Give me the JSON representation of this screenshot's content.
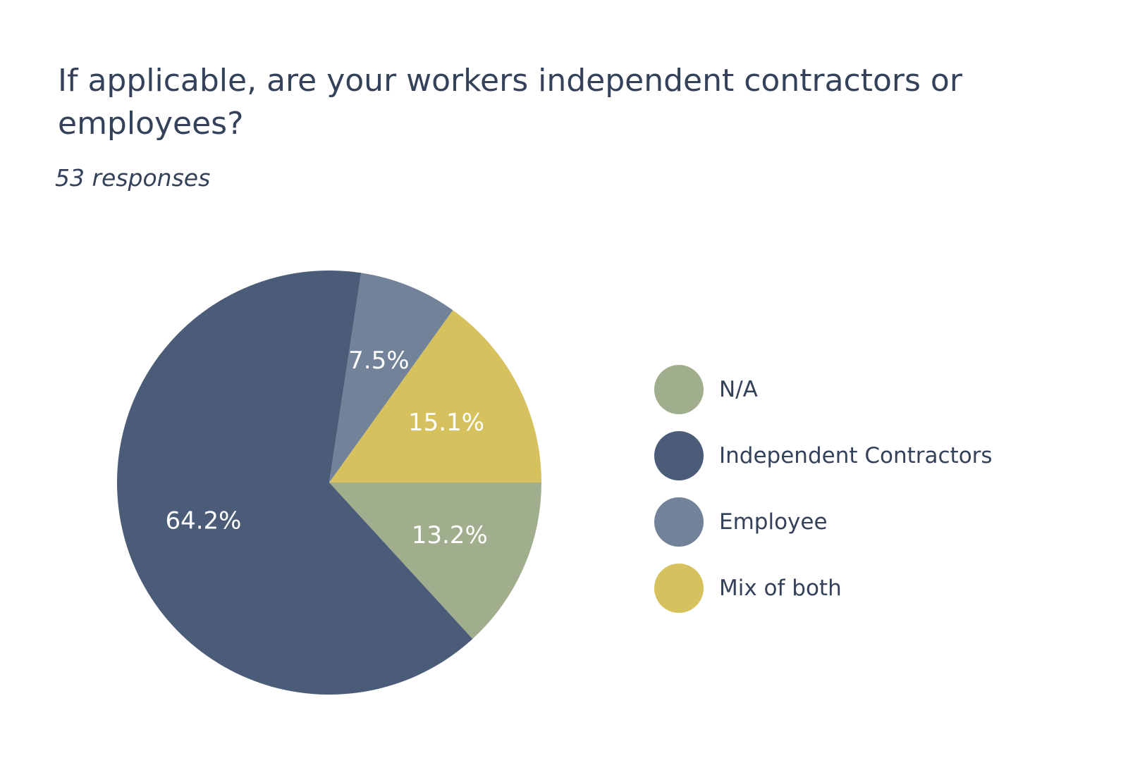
{
  "chart_data": {
    "type": "pie",
    "title": "If applicable, are your workers independent contractors or employees?",
    "subtitle": "53 responses",
    "categories": [
      "N/A",
      "Independent Contractors",
      "Employee",
      "Mix of both"
    ],
    "values": [
      13.2,
      64.2,
      7.5,
      15.1
    ],
    "value_labels": [
      "13.2%",
      "64.2%",
      "7.5%",
      "15.1%"
    ],
    "colors": [
      "#a1ae8d",
      "#4b5c78",
      "#718299",
      "#d6c15f"
    ],
    "legend_position": "right"
  }
}
